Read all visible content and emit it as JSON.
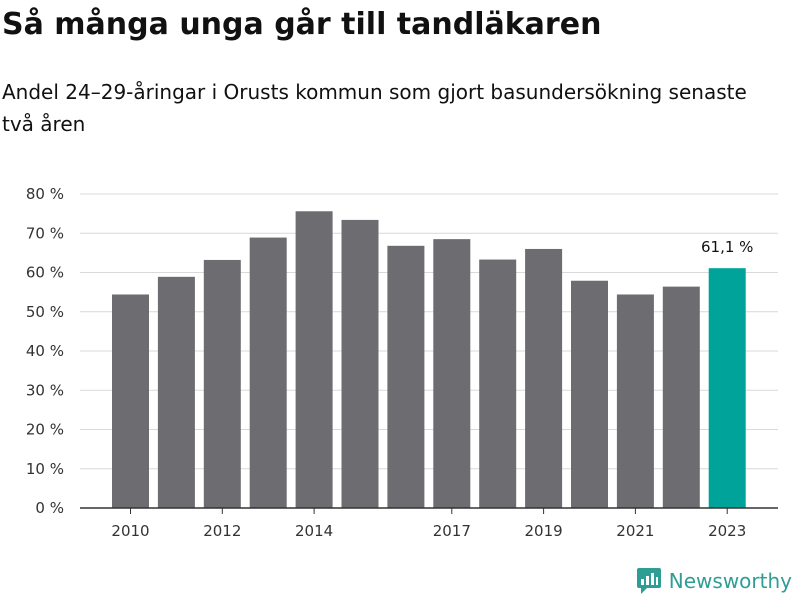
{
  "header": {
    "title": "Så många unga går till tandläkaren",
    "subtitle": "Andel 24–29-åringar i Orusts kommun som gjort basundersökning senaste två åren"
  },
  "brand": {
    "name": "Newsworthy",
    "icon": "newsworthy-logo-icon"
  },
  "colors": {
    "bar": "#6d6c71",
    "highlight": "#00a39a",
    "grid": "#d9d9d9",
    "axis": "#333333"
  },
  "chart_data": {
    "type": "bar",
    "categories": [
      "2010",
      "2011",
      "2012",
      "2013",
      "2014",
      "2015",
      "2016",
      "2017",
      "2018",
      "2019",
      "2020",
      "2021",
      "2022",
      "2023"
    ],
    "x_tick_labels": [
      "2010",
      "",
      "2012",
      "",
      "2014",
      "",
      "",
      "2017",
      "",
      "2019",
      "",
      "2021",
      "",
      "2023"
    ],
    "values": [
      54.4,
      58.9,
      63.2,
      68.9,
      75.6,
      73.4,
      66.8,
      68.5,
      63.3,
      66.0,
      57.9,
      54.4,
      56.4,
      61.1
    ],
    "highlight_index": 13,
    "annotations": [
      {
        "category": "2023",
        "text": "61,1 %"
      }
    ],
    "y_ticks": [
      "0 %",
      "10 %",
      "20 %",
      "30 %",
      "40 %",
      "50 %",
      "60 %",
      "70 %",
      "80 %"
    ],
    "ylim": [
      0,
      80
    ],
    "grid": true,
    "legend": "none"
  }
}
